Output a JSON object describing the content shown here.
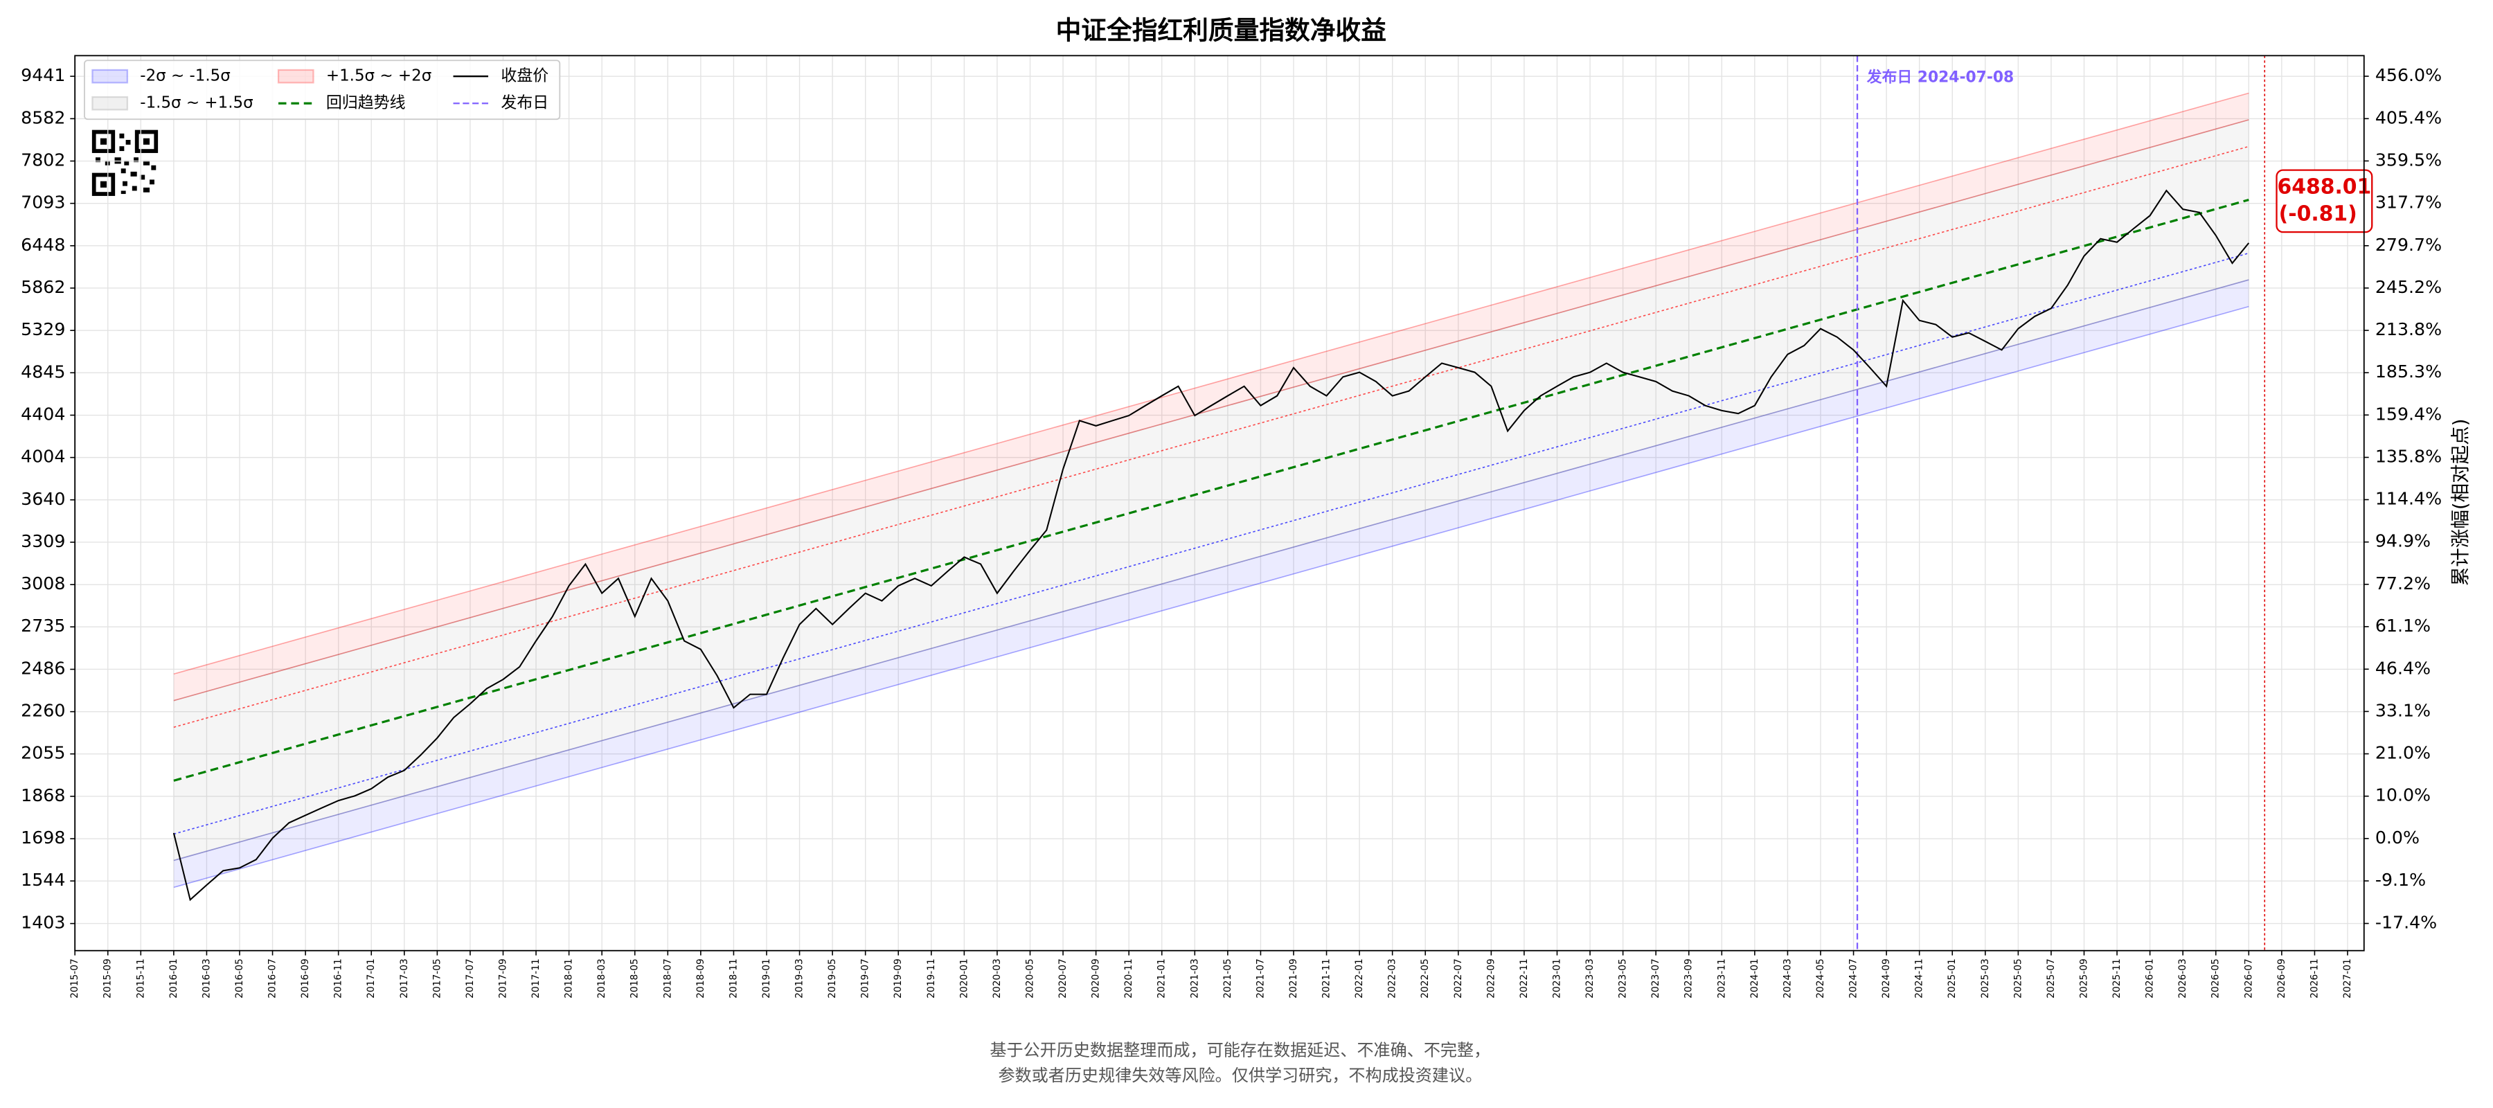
{
  "chart_data": {
    "type": "line",
    "title": "中证全指红利质量指数净收益",
    "y2_label": "累计涨幅(相对起点)",
    "log_y": true,
    "grid": true,
    "xlim": [
      "2015-07",
      "2027-02"
    ],
    "xticks": [
      "2015-07",
      "2015-09",
      "2015-11",
      "2016-01",
      "2016-03",
      "2016-05",
      "2016-07",
      "2016-09",
      "2016-11",
      "2017-01",
      "2017-03",
      "2017-05",
      "2017-07",
      "2017-09",
      "2017-11",
      "2018-01",
      "2018-03",
      "2018-05",
      "2018-07",
      "2018-09",
      "2018-11",
      "2019-01",
      "2019-03",
      "2019-05",
      "2019-07",
      "2019-09",
      "2019-11",
      "2020-01",
      "2020-03",
      "2020-05",
      "2020-07",
      "2020-09",
      "2020-11",
      "2021-01",
      "2021-03",
      "2021-05",
      "2021-07",
      "2021-09",
      "2021-11",
      "2022-01",
      "2022-03",
      "2022-05",
      "2022-07",
      "2022-09",
      "2022-11",
      "2023-01",
      "2023-03",
      "2023-05",
      "2023-07",
      "2023-09",
      "2023-11",
      "2024-01",
      "2024-03",
      "2024-05",
      "2024-07",
      "2024-09",
      "2024-11",
      "2025-01",
      "2025-03",
      "2025-05",
      "2025-07",
      "2025-09",
      "2025-11",
      "2026-01",
      "2026-03",
      "2026-05",
      "2026-07",
      "2026-09",
      "2026-11",
      "2027-01"
    ],
    "ylim": [
      1320,
      9890
    ],
    "yticks": [
      9441,
      8582,
      7802,
      7093,
      6448,
      5862,
      5329,
      4845,
      4404,
      4004,
      3640,
      3309,
      3008,
      2735,
      2486,
      2260,
      2055,
      1868,
      1698,
      1544,
      1403
    ],
    "y2lim": [
      -22.3,
      482.4
    ],
    "y2ticks": [
      {
        "value": 456.0,
        "label": "456.0%"
      },
      {
        "value": 405.4,
        "label": "405.4%"
      },
      {
        "value": 359.5,
        "label": "359.5%"
      },
      {
        "value": 317.7,
        "label": "317.7%"
      },
      {
        "value": 279.7,
        "label": "279.7%"
      },
      {
        "value": 245.2,
        "label": "245.2%"
      },
      {
        "value": 213.8,
        "label": "213.8%"
      },
      {
        "value": 185.3,
        "label": "185.3%"
      },
      {
        "value": 159.4,
        "label": "159.4%"
      },
      {
        "value": 135.8,
        "label": "135.8%"
      },
      {
        "value": 114.4,
        "label": "114.4%"
      },
      {
        "value": 94.9,
        "label": "94.9%"
      },
      {
        "value": 77.2,
        "label": "77.2%"
      },
      {
        "value": 61.1,
        "label": "61.1%"
      },
      {
        "value": 46.4,
        "label": "46.4%"
      },
      {
        "value": 33.1,
        "label": "33.1%"
      },
      {
        "value": 21.0,
        "label": "21.0%"
      },
      {
        "value": 10.0,
        "label": "10.0%"
      },
      {
        "value": 0.0,
        "label": "0.0%"
      },
      {
        "value": -9.1,
        "label": "-9.1%"
      },
      {
        "value": -17.4,
        "label": "-17.4%"
      }
    ],
    "x": [
      "2016-01",
      "2016-02",
      "2016-03",
      "2016-04",
      "2016-05",
      "2016-06",
      "2016-07",
      "2016-08",
      "2016-09",
      "2016-10",
      "2016-11",
      "2016-12",
      "2017-01",
      "2017-02",
      "2017-03",
      "2017-04",
      "2017-05",
      "2017-06",
      "2017-07",
      "2017-08",
      "2017-09",
      "2017-10",
      "2017-11",
      "2017-12",
      "2018-01",
      "2018-02",
      "2018-03",
      "2018-04",
      "2018-05",
      "2018-06",
      "2018-07",
      "2018-08",
      "2018-09",
      "2018-10",
      "2018-11",
      "2018-12",
      "2019-01",
      "2019-02",
      "2019-03",
      "2019-04",
      "2019-05",
      "2019-06",
      "2019-07",
      "2019-08",
      "2019-09",
      "2019-10",
      "2019-11",
      "2019-12",
      "2020-01",
      "2020-02",
      "2020-03",
      "2020-04",
      "2020-05",
      "2020-06",
      "2020-07",
      "2020-08",
      "2020-09",
      "2020-10",
      "2020-11",
      "2020-12",
      "2021-01",
      "2021-02",
      "2021-03",
      "2021-04",
      "2021-05",
      "2021-06",
      "2021-07",
      "2021-08",
      "2021-09",
      "2021-10",
      "2021-11",
      "2021-12",
      "2022-01",
      "2022-02",
      "2022-03",
      "2022-04",
      "2022-05",
      "2022-06",
      "2022-07",
      "2022-08",
      "2022-09",
      "2022-10",
      "2022-11",
      "2022-12",
      "2023-01",
      "2023-02",
      "2023-03",
      "2023-04",
      "2023-05",
      "2023-06",
      "2023-07",
      "2023-08",
      "2023-09",
      "2023-10",
      "2023-11",
      "2023-12",
      "2024-01",
      "2024-02",
      "2024-03",
      "2024-04",
      "2024-05",
      "2024-06",
      "2024-07",
      "2024-08",
      "2024-09",
      "2024-10",
      "2024-11",
      "2024-12",
      "2025-01",
      "2025-02",
      "2025-03",
      "2025-04",
      "2025-05",
      "2025-06",
      "2025-07",
      "2025-08",
      "2025-09",
      "2025-10",
      "2025-11",
      "2025-12",
      "2026-01",
      "2026-02",
      "2026-03",
      "2026-04",
      "2026-05",
      "2026-06",
      "2026-07"
    ],
    "series": [
      {
        "name": "收盘价",
        "color": "#000000",
        "values": [
          1720,
          1480,
          1530,
          1580,
          1590,
          1620,
          1700,
          1760,
          1790,
          1820,
          1850,
          1870,
          1900,
          1950,
          1980,
          2050,
          2130,
          2230,
          2300,
          2380,
          2430,
          2500,
          2650,
          2800,
          3000,
          3150,
          2950,
          3050,
          2800,
          3050,
          2900,
          2650,
          2600,
          2450,
          2280,
          2350,
          2350,
          2550,
          2750,
          2850,
          2750,
          2850,
          2950,
          2900,
          3000,
          3050,
          3000,
          3100,
          3200,
          3150,
          2950,
          3100,
          3250,
          3400,
          3900,
          4350,
          4300,
          4350,
          4400,
          4500,
          4600,
          4700,
          4400,
          4500,
          4600,
          4700,
          4500,
          4600,
          4900,
          4700,
          4600,
          4800,
          4850,
          4750,
          4600,
          4650,
          4800,
          4950,
          4900,
          4850,
          4700,
          4250,
          4450,
          4600,
          4700,
          4800,
          4850,
          4950,
          4850,
          4800,
          4750,
          4650,
          4600,
          4500,
          4450,
          4420,
          4500,
          4800,
          5050,
          5150,
          5350,
          5250,
          5100,
          4900,
          4700,
          5700,
          5450,
          5400,
          5250,
          5300,
          5200,
          5100,
          5350,
          5500,
          5600,
          5900,
          6300,
          6550,
          6500,
          6700,
          6900,
          7300,
          7000,
          6950,
          6600,
          6200,
          6488.01
        ]
      }
    ],
    "end_change": "(-0.81)",
    "end_color": "#e00000",
    "band_x": [
      "2016-01",
      "2026-07"
    ],
    "bands": [
      {
        "name": "-2σ ~ -1.5σ",
        "color": "#0000ff",
        "lower": [
          1522,
          5624
        ],
        "upper": [
          1617,
          5972
        ]
      },
      {
        "name": "-1.5σ ~ +1.5σ",
        "color": "#808080",
        "lower": [
          1617,
          5972
        ],
        "upper": [
          2317,
          8560
        ]
      },
      {
        "name": "+1.5σ ~ +2σ",
        "color": "#ff0000",
        "lower": [
          2317,
          8560
        ],
        "upper": [
          2460,
          9090
        ]
      }
    ],
    "trend": {
      "name": "回归趋势线",
      "color": "#008000",
      "values": [
        1935,
        7150
      ]
    },
    "sigma_lines": [
      {
        "color": "#ff0000",
        "values": [
          2182,
          8062
        ]
      },
      {
        "color": "#0000ff",
        "values": [
          1716,
          6341
        ]
      }
    ],
    "release": {
      "name": "发布日",
      "label": "发布日 2024-07-08",
      "x": "2024-07-08",
      "color": "#8060ff"
    }
  },
  "footer": [
    "基于公开历史数据整理而成，可能存在数据延迟、不准确、不完整，",
    "参数或者历史规律失效等风险。仅供学习研究，不构成投资建议。"
  ]
}
